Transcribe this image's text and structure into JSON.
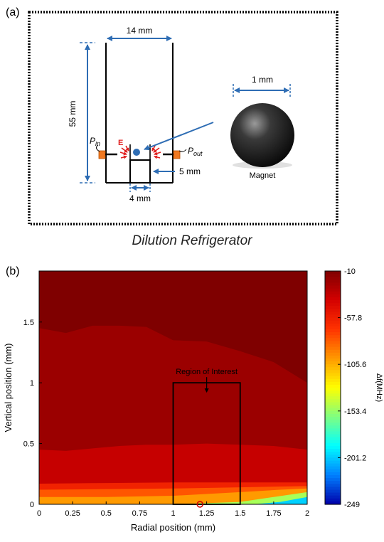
{
  "panel_a": {
    "label": "(a)",
    "width_label": "14 mm",
    "height_label": "55 mm",
    "pin_label": "P",
    "pin_sub": "in",
    "pout_label": "P",
    "pout_sub": "out",
    "e_label": "E",
    "dim5_label": "5 mm",
    "dim4_label": "4 mm",
    "magnet_size_label": "1 mm",
    "magnet_label": "Magnet",
    "caption": "Dilution Refrigerator"
  },
  "panel_b": {
    "label": "(b)",
    "roi_label": "Region of Interest",
    "colorbar_unit": "Δf(MHz)"
  },
  "chart_data": {
    "type": "heatmap",
    "title": "",
    "xlabel": "Radial position (mm)",
    "ylabel": "Vertical position (mm)",
    "xlim": [
      0,
      2
    ],
    "ylim": [
      0,
      1.92
    ],
    "x_ticks": [
      "0",
      "0.25",
      "0.5",
      "0.75",
      "1",
      "1.25",
      "1.5",
      "1.75",
      "2"
    ],
    "x_tick_values": [
      0,
      0.25,
      0.5,
      0.75,
      1,
      1.25,
      1.5,
      1.75,
      2
    ],
    "y_ticks": [
      "0",
      "0.5",
      "1",
      "1.5"
    ],
    "y_tick_values": [
      0,
      0.5,
      1,
      1.5
    ],
    "colorbar": {
      "label": "Δf(MHz)",
      "ticks": [
        "-10",
        "-57.8",
        "-105.6",
        "-153.4",
        "-201.2",
        "-249"
      ],
      "tick_values": [
        -10,
        -57.8,
        -105.6,
        -153.4,
        -201.2,
        -249
      ],
      "range": [
        -249,
        -10
      ],
      "colors": [
        "#7f0000",
        "#d40000",
        "#ff3300",
        "#ff9900",
        "#ffff00",
        "#80ff80",
        "#00ffff",
        "#0080ff",
        "#0000aa"
      ]
    },
    "contour_boundaries": [
      {
        "level": -20,
        "x": [
          0,
          0.2,
          0.4,
          0.6,
          0.8,
          1.0,
          1.25,
          1.5,
          1.75,
          2.0
        ],
        "y": [
          1.45,
          1.41,
          1.47,
          1.47,
          1.46,
          1.35,
          1.34,
          1.26,
          1.17,
          1.0
        ]
      },
      {
        "level": -35,
        "x": [
          0,
          0.2,
          0.4,
          0.6,
          0.8,
          1.0,
          1.25,
          1.5,
          1.75,
          2.0
        ],
        "y": [
          0.45,
          0.44,
          0.46,
          0.48,
          0.49,
          0.49,
          0.5,
          0.49,
          0.48,
          0.45
        ]
      },
      {
        "level": -60,
        "x": [
          0,
          0.5,
          1.0,
          1.5,
          2.0
        ],
        "y": [
          0.17,
          0.175,
          0.18,
          0.18,
          0.18
        ]
      },
      {
        "level": -80,
        "x": [
          0,
          0.5,
          1.0,
          1.5,
          2.0
        ],
        "y": [
          0.12,
          0.125,
          0.13,
          0.14,
          0.15
        ]
      },
      {
        "level": -100,
        "x": [
          0,
          0.5,
          1.0,
          1.5,
          1.8,
          2.0
        ],
        "y": [
          0.06,
          0.06,
          0.07,
          0.1,
          0.12,
          0.13
        ]
      },
      {
        "level": -150,
        "x": [
          0,
          1.0,
          1.5,
          1.75,
          2.0
        ],
        "y": [
          0.0,
          0.0,
          0.02,
          0.06,
          0.1
        ]
      },
      {
        "level": -200,
        "x": [
          1.6,
          1.8,
          2.0
        ],
        "y": [
          0.0,
          0.02,
          0.06
        ]
      }
    ],
    "region_of_interest": {
      "x": [
        1.0,
        1.5
      ],
      "y": [
        0,
        1.0
      ]
    },
    "marker": {
      "x": 1.2,
      "y": 0
    }
  }
}
